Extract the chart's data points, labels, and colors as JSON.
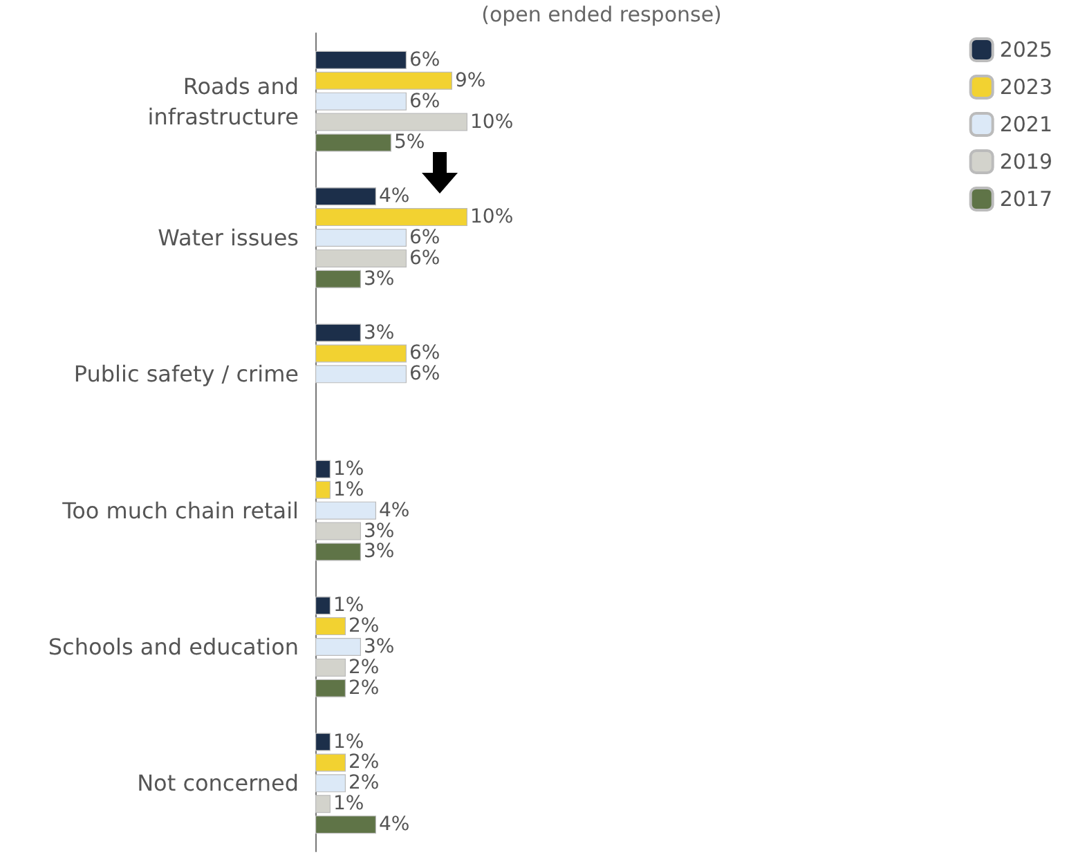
{
  "chart_data": {
    "type": "bar",
    "orientation": "horizontal",
    "subtitle": "(open ended response)",
    "categories": [
      "Roads and\ninfrastructure",
      "Water issues",
      "Public safety / crime",
      "Too much chain retail",
      "Schools and education",
      "Not concerned"
    ],
    "series": [
      {
        "name": "2025",
        "color": "#1c2f4a",
        "values": [
          6,
          4,
          3,
          1,
          1,
          1
        ],
        "value_labels": [
          "6%",
          "4%",
          "3%",
          "1%",
          "1%",
          "1%"
        ]
      },
      {
        "name": "2023",
        "color": "#f2d231",
        "values": [
          9,
          10,
          6,
          1,
          2,
          2
        ],
        "value_labels": [
          "9%",
          "10%",
          "6%",
          "1%",
          "2%",
          "2%"
        ]
      },
      {
        "name": "2021",
        "color": "#dce9f7",
        "values": [
          6,
          6,
          6,
          4,
          3,
          2
        ],
        "value_labels": [
          "6%",
          "6%",
          "6%",
          "4%",
          "3%",
          "2%"
        ]
      },
      {
        "name": "2019",
        "color": "#d3d3cc",
        "values": [
          10,
          6,
          null,
          3,
          2,
          1
        ],
        "value_labels": [
          "10%",
          "6%",
          null,
          "3%",
          "2%",
          "1%"
        ]
      },
      {
        "name": "2017",
        "color": "#5f7447",
        "values": [
          5,
          3,
          null,
          3,
          2,
          4
        ],
        "value_labels": [
          "5%",
          "3%",
          null,
          "3%",
          "2%",
          "4%"
        ]
      }
    ],
    "legend": "top right",
    "tick_labels": "y"
  }
}
